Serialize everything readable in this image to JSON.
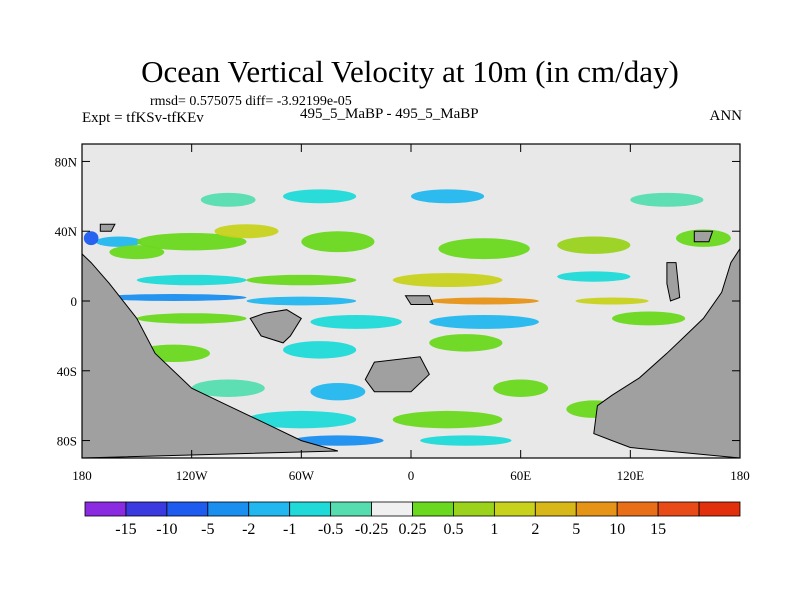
{
  "chart_data": {
    "type": "heatmap",
    "title": "Ocean Vertical Velocity at 10m (in cm/day)",
    "stats_text": "rmsd= 0.575075  diff= -3.92199e-05",
    "expt_text": "Expt = tfKSv-tfKEv",
    "case_text": "495_5_MaBP - 495_5_MaBP",
    "season_text": "ANN",
    "xlim": [
      -180,
      180
    ],
    "ylim": [
      -90,
      90
    ],
    "x_ticks": [
      {
        "value": -180,
        "label": "180"
      },
      {
        "value": -120,
        "label": "120W"
      },
      {
        "value": -60,
        "label": "60W"
      },
      {
        "value": 0,
        "label": "0"
      },
      {
        "value": 60,
        "label": "60E"
      },
      {
        "value": 120,
        "label": "120E"
      },
      {
        "value": 180,
        "label": "180"
      }
    ],
    "y_ticks": [
      {
        "value": 80,
        "label": "80N"
      },
      {
        "value": 40,
        "label": "40N"
      },
      {
        "value": 0,
        "label": "0"
      },
      {
        "value": -40,
        "label": "40S"
      },
      {
        "value": -80,
        "label": "80S"
      }
    ],
    "colorbar": {
      "colors": [
        "#8a2be2",
        "#3a3ae0",
        "#1e5cf0",
        "#1a8ff0",
        "#22b7ef",
        "#1fdad8",
        "#55ddb0",
        "#f0f0f0",
        "#6ad81e",
        "#9ad21c",
        "#c8d21c",
        "#d8b818",
        "#e69418",
        "#e86f18",
        "#e84a18",
        "#e2300c"
      ],
      "labels": [
        "-15",
        "-10",
        "-5",
        "-2",
        "-1",
        "-0.5",
        "-0.25",
        "0.25",
        "0.5",
        "1",
        "2",
        "5",
        "10",
        "15"
      ]
    },
    "fields": {
      "ocean_fill": "#e8e8e8",
      "land_fill": "#a0a0a0",
      "patches": [
        {
          "lon": -160,
          "lat": 34,
          "w": 25,
          "h": 6,
          "c": "#22b7ef"
        },
        {
          "lon": -175,
          "lat": 36,
          "w": 8,
          "h": 8,
          "c": "#1e5cf0"
        },
        {
          "lon": -150,
          "lat": 28,
          "w": 30,
          "h": 8,
          "c": "#6ad81e"
        },
        {
          "lon": -120,
          "lat": 34,
          "w": 60,
          "h": 10,
          "c": "#6ad81e"
        },
        {
          "lon": -90,
          "lat": 40,
          "w": 35,
          "h": 8,
          "c": "#c8d21c"
        },
        {
          "lon": -100,
          "lat": 58,
          "w": 30,
          "h": 8,
          "c": "#55ddb0"
        },
        {
          "lon": -50,
          "lat": 60,
          "w": 40,
          "h": 8,
          "c": "#1fdad8"
        },
        {
          "lon": 20,
          "lat": 60,
          "w": 40,
          "h": 8,
          "c": "#22b7ef"
        },
        {
          "lon": -40,
          "lat": 34,
          "w": 40,
          "h": 12,
          "c": "#6ad81e"
        },
        {
          "lon": 40,
          "lat": 30,
          "w": 50,
          "h": 12,
          "c": "#6ad81e"
        },
        {
          "lon": 100,
          "lat": 32,
          "w": 40,
          "h": 10,
          "c": "#9ad21c"
        },
        {
          "lon": 140,
          "lat": 58,
          "w": 40,
          "h": 8,
          "c": "#55ddb0"
        },
        {
          "lon": 160,
          "lat": 36,
          "w": 30,
          "h": 10,
          "c": "#6ad81e"
        },
        {
          "lon": -120,
          "lat": 12,
          "w": 60,
          "h": 6,
          "c": "#1fdad8"
        },
        {
          "lon": -60,
          "lat": 12,
          "w": 60,
          "h": 6,
          "c": "#6ad81e"
        },
        {
          "lon": 20,
          "lat": 12,
          "w": 60,
          "h": 8,
          "c": "#c8d21c"
        },
        {
          "lon": 100,
          "lat": 14,
          "w": 40,
          "h": 6,
          "c": "#1fdad8"
        },
        {
          "lon": -130,
          "lat": 2,
          "w": 80,
          "h": 4,
          "c": "#1a8ff0"
        },
        {
          "lon": -60,
          "lat": 0,
          "w": 60,
          "h": 5,
          "c": "#22b7ef"
        },
        {
          "lon": 40,
          "lat": 0,
          "w": 60,
          "h": 4,
          "c": "#e69418"
        },
        {
          "lon": 110,
          "lat": 0,
          "w": 40,
          "h": 4,
          "c": "#c8d21c"
        },
        {
          "lon": -120,
          "lat": -10,
          "w": 60,
          "h": 6,
          "c": "#6ad81e"
        },
        {
          "lon": -30,
          "lat": -12,
          "w": 50,
          "h": 8,
          "c": "#1fdad8"
        },
        {
          "lon": 40,
          "lat": -12,
          "w": 60,
          "h": 8,
          "c": "#22b7ef"
        },
        {
          "lon": 130,
          "lat": -10,
          "w": 40,
          "h": 8,
          "c": "#6ad81e"
        },
        {
          "lon": -130,
          "lat": -30,
          "w": 40,
          "h": 10,
          "c": "#6ad81e"
        },
        {
          "lon": -50,
          "lat": -28,
          "w": 40,
          "h": 10,
          "c": "#1fdad8"
        },
        {
          "lon": 30,
          "lat": -24,
          "w": 40,
          "h": 10,
          "c": "#6ad81e"
        },
        {
          "lon": -100,
          "lat": -50,
          "w": 40,
          "h": 10,
          "c": "#55ddb0"
        },
        {
          "lon": -40,
          "lat": -52,
          "w": 30,
          "h": 10,
          "c": "#22b7ef"
        },
        {
          "lon": 60,
          "lat": -50,
          "w": 30,
          "h": 10,
          "c": "#6ad81e"
        },
        {
          "lon": -60,
          "lat": -68,
          "w": 60,
          "h": 10,
          "c": "#1fdad8"
        },
        {
          "lon": 20,
          "lat": -68,
          "w": 60,
          "h": 10,
          "c": "#6ad81e"
        },
        {
          "lon": -40,
          "lat": -80,
          "w": 50,
          "h": 6,
          "c": "#1a8ff0"
        },
        {
          "lon": 30,
          "lat": -80,
          "w": 50,
          "h": 6,
          "c": "#1fdad8"
        },
        {
          "lon": 100,
          "lat": -62,
          "w": 30,
          "h": 10,
          "c": "#6ad81e"
        }
      ],
      "land": [
        {
          "poly": [
            [
              -180,
              27
            ],
            [
              -175,
              22
            ],
            [
              -165,
              10
            ],
            [
              -150,
              -10
            ],
            [
              -140,
              -30
            ],
            [
              -120,
              -50
            ],
            [
              -100,
              -60
            ],
            [
              -80,
              -70
            ],
            [
              -60,
              -80
            ],
            [
              -40,
              -86
            ],
            [
              -180,
              -90
            ]
          ]
        },
        {
          "poly": [
            [
              -180,
              -90
            ],
            [
              180,
              -90
            ],
            [
              180,
              -90
            ],
            [
              -180,
              -90
            ]
          ]
        },
        {
          "poly": [
            [
              180,
              30
            ],
            [
              175,
              22
            ],
            [
              170,
              5
            ],
            [
              160,
              -10
            ],
            [
              150,
              -20
            ],
            [
              140,
              -30
            ],
            [
              125,
              -44
            ],
            [
              110,
              -54
            ],
            [
              102,
              -60
            ],
            [
              100,
              -76
            ],
            [
              110,
              -80
            ],
            [
              120,
              -84
            ],
            [
              180,
              -90
            ]
          ]
        },
        {
          "poly": [
            [
              -80,
              -7
            ],
            [
              -68,
              -5
            ],
            [
              -60,
              -10
            ],
            [
              -66,
              -20
            ],
            [
              -70,
              -24
            ],
            [
              -82,
              -20
            ],
            [
              -88,
              -10
            ]
          ]
        },
        {
          "poly": [
            [
              -20,
              -35
            ],
            [
              5,
              -32
            ],
            [
              10,
              -42
            ],
            [
              0,
              -52
            ],
            [
              -20,
              -52
            ],
            [
              -25,
              -45
            ]
          ]
        },
        {
          "poly": [
            [
              -3,
              3
            ],
            [
              10,
              3
            ],
            [
              12,
              -2
            ],
            [
              0,
              -2
            ]
          ]
        },
        {
          "poly": [
            [
              140,
              22
            ],
            [
              145,
              22
            ],
            [
              147,
              2
            ],
            [
              142,
              0
            ],
            [
              140,
              10
            ]
          ]
        },
        {
          "poly": [
            [
              155,
              40
            ],
            [
              165,
              40
            ],
            [
              163,
              34
            ],
            [
              155,
              34
            ]
          ]
        },
        {
          "poly": [
            [
              -170,
              44
            ],
            [
              -162,
              44
            ],
            [
              -164,
              40
            ],
            [
              -170,
              40
            ]
          ]
        }
      ]
    }
  }
}
